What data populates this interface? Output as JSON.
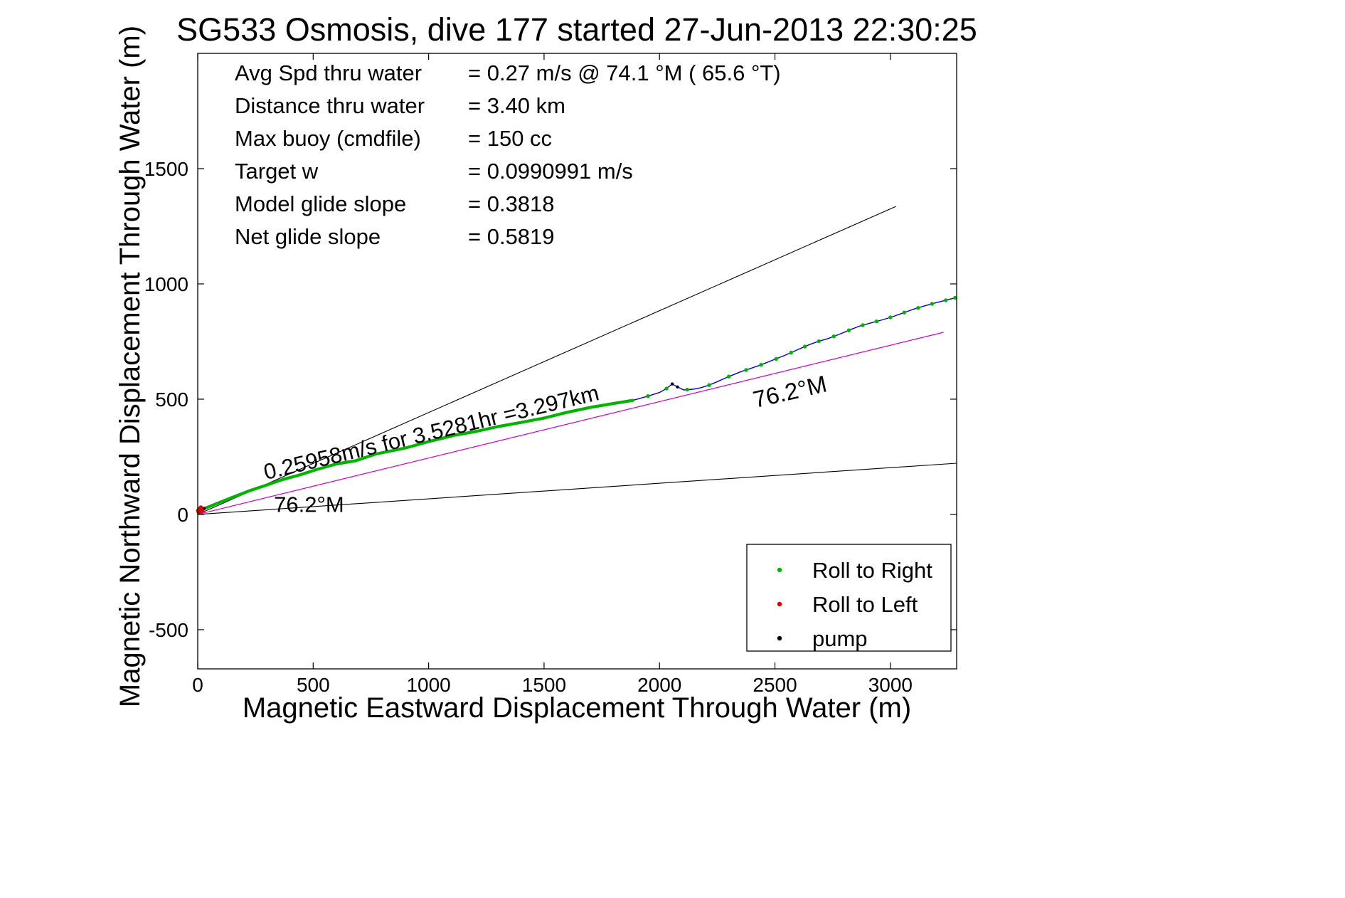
{
  "title": "SG533 Osmosis, dive 177 started 27-Jun-2013 22:30:25",
  "chart_data": {
    "type": "line",
    "title": "SG533 Osmosis, dive 177 started 27-Jun-2013 22:30:25",
    "xlabel": "Magnetic Eastward Displacement Through Water (m)",
    "ylabel": "Magnetic Northward Displacement Through Water (m)",
    "xlim": [
      0,
      3287
    ],
    "ylim": [
      -670,
      2000
    ],
    "xticks": [
      0,
      500,
      1000,
      1500,
      2000,
      2500,
      3000
    ],
    "yticks": [
      -500,
      0,
      500,
      1000,
      1500
    ],
    "grid": false,
    "stats": [
      {
        "label": "Avg Spd thru water",
        "value": "=  0.27 m/s @  74.1 °M ( 65.6 °T)"
      },
      {
        "label": "Distance thru water",
        "value": "=  3.40 km"
      },
      {
        "label": "Max buoy (cmdfile)",
        "value": "= 150 cc"
      },
      {
        "label": "Target w",
        "value": "= 0.0990991 m/s"
      },
      {
        "label": "Model glide slope",
        "value": "= 0.3818"
      },
      {
        "label": "Net glide slope",
        "value": "= 0.5819"
      }
    ],
    "track": {
      "name": "dive-track",
      "color": "#0000dd",
      "points": [
        [
          0,
          15
        ],
        [
          45,
          32
        ],
        [
          95,
          52
        ],
        [
          150,
          74
        ],
        [
          222,
          102
        ],
        [
          300,
          128
        ],
        [
          370,
          152
        ],
        [
          437,
          170
        ],
        [
          520,
          196
        ],
        [
          600,
          219
        ],
        [
          684,
          233
        ],
        [
          770,
          262
        ],
        [
          840,
          276
        ],
        [
          899,
          288
        ],
        [
          1000,
          316
        ],
        [
          1115,
          344
        ],
        [
          1210,
          361
        ],
        [
          1300,
          381
        ],
        [
          1400,
          399
        ],
        [
          1500,
          418
        ],
        [
          1600,
          443
        ],
        [
          1700,
          464
        ],
        [
          1800,
          481
        ],
        [
          1885,
          495
        ],
        [
          1950,
          513
        ],
        [
          2000,
          529
        ],
        [
          2030,
          546
        ],
        [
          2055,
          566
        ],
        [
          2078,
          553
        ],
        [
          2105,
          540
        ],
        [
          2145,
          543
        ],
        [
          2180,
          550
        ],
        [
          2215,
          561
        ],
        [
          2255,
          578
        ],
        [
          2300,
          598
        ],
        [
          2350,
          618
        ],
        [
          2400,
          635
        ],
        [
          2440,
          649
        ],
        [
          2500,
          673
        ],
        [
          2545,
          691
        ],
        [
          2595,
          713
        ],
        [
          2650,
          737
        ],
        [
          2690,
          751
        ],
        [
          2730,
          763
        ],
        [
          2780,
          782
        ],
        [
          2830,
          803
        ],
        [
          2870,
          818
        ],
        [
          2920,
          832
        ],
        [
          2965,
          844
        ],
        [
          3010,
          858
        ],
        [
          3055,
          874
        ],
        [
          3100,
          890
        ],
        [
          3150,
          905
        ],
        [
          3200,
          919
        ],
        [
          3245,
          930
        ],
        [
          3286,
          941
        ]
      ]
    },
    "markers": {
      "roll_right": {
        "color": "#00b400",
        "dense_until_x": 1885,
        "dot_x": [
          1950,
          2030,
          2120,
          2215,
          2300,
          2375,
          2440,
          2505,
          2570,
          2630,
          2690,
          2755,
          2820,
          2880,
          2940,
          3000,
          3060,
          3120,
          3180,
          3240,
          3280
        ]
      },
      "roll_left": {
        "color": "#dd0000",
        "points": [
          [
            4,
            10
          ],
          [
            10,
            18
          ],
          [
            17,
            14
          ],
          [
            7,
            24
          ],
          [
            22,
            22
          ],
          [
            14,
            30
          ],
          [
            2,
            17
          ]
        ]
      },
      "pump": {
        "color": "#000000",
        "points": [
          [
            28,
            26
          ],
          [
            2055,
            566
          ],
          [
            2078,
            553
          ]
        ]
      }
    },
    "reference_lines": [
      {
        "name": "bearing-wedge-upper",
        "color": "#000000",
        "width": 1.1,
        "points": [
          [
            0,
            0
          ],
          [
            3024,
            1336
          ]
        ]
      },
      {
        "name": "bearing-wedge-lower",
        "color": "#000000",
        "width": 1.1,
        "points": [
          [
            0,
            0
          ],
          [
            3287,
            222
          ]
        ]
      },
      {
        "name": "average-course",
        "color": "#cc00cc",
        "width": 1.2,
        "points": [
          [
            0,
            0
          ],
          [
            3230,
            790
          ]
        ]
      }
    ],
    "annotations": [
      {
        "text": "0.25958m/s for 3.5281hr =3.297km",
        "x": 295,
        "y": 150,
        "rotation": -13.5,
        "font_size": 31
      },
      {
        "text": "76.2°M",
        "x": 330,
        "y": 10,
        "rotation": 0,
        "font_size": 31
      },
      {
        "text": "76.2°M",
        "x": 2415,
        "y": 462,
        "rotation": -13,
        "font_size": 33
      }
    ],
    "legend": {
      "position": "bottom-right",
      "entries": [
        {
          "name": "roll-to-right",
          "label": "Roll to Right",
          "color": "#00b400"
        },
        {
          "name": "roll-to-left",
          "label": "Roll to Left",
          "color": "#dd0000"
        },
        {
          "name": "pump",
          "label": "pump",
          "color": "#000000"
        }
      ]
    }
  }
}
